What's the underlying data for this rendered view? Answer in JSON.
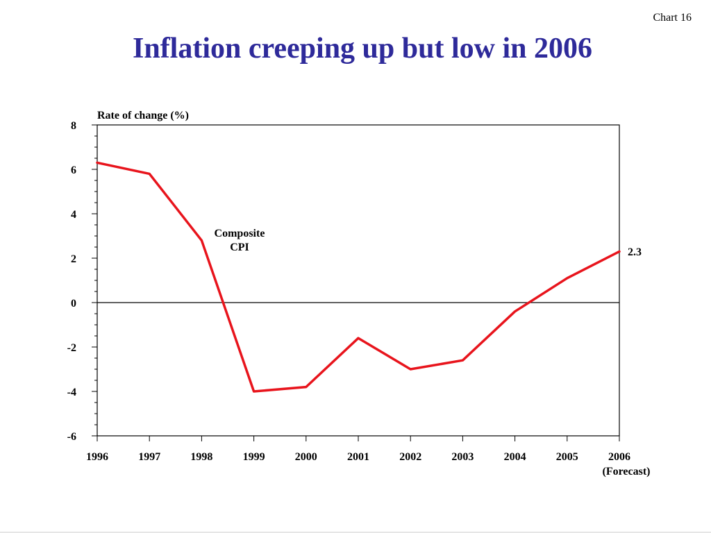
{
  "slide": {
    "chart_number": "Chart 16",
    "title": "Inflation creeping up but low in 2006"
  },
  "colors": {
    "title": "#2e2a9a",
    "series": "#e8141c",
    "axis": "#000000"
  },
  "chart_data": {
    "type": "line",
    "title": "Inflation creeping up but low in 2006",
    "ylabel": "Rate of change (%)",
    "xlabel": "",
    "x": [
      "1996",
      "1997",
      "1998",
      "1999",
      "2000",
      "2001",
      "2002",
      "2003",
      "2004",
      "2005",
      "2006"
    ],
    "x_sublabel": {
      "2006": "(Forecast)"
    },
    "ylim": [
      -6,
      8
    ],
    "yticks": [
      8,
      6,
      4,
      2,
      0,
      -2,
      -4,
      -6
    ],
    "grid": false,
    "zero_line": true,
    "series": [
      {
        "name": "Composite CPI",
        "color": "#e8141c",
        "values": [
          6.3,
          5.8,
          2.8,
          -4.0,
          -3.8,
          -1.6,
          -3.0,
          -2.6,
          -0.4,
          1.1,
          2.3
        ]
      }
    ],
    "annotations": [
      {
        "text": "Composite",
        "line2": "CPI"
      },
      {
        "text": "2.3"
      }
    ]
  }
}
